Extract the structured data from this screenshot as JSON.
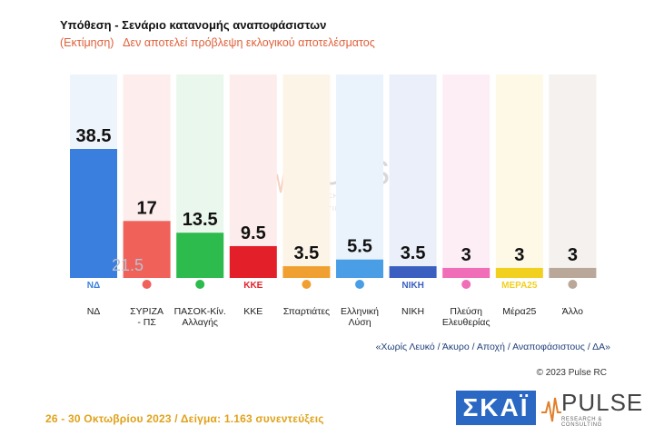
{
  "title": "Υπόθεση - Σενάριο κατανομής αναποφάσιστων",
  "subtitle": "(Εκτίμηση)   Δεν αποτελεί πρόβλεψη εκλογικού αποτελέσματος",
  "footer": "26 - 30 Οκτωβρίου  2023  /  Δείγμα:  1.163 συνεντεύξεις",
  "footnote": "«Χωρίς Λευκό / Άκυρο / Αποχή / Αναποφάσιστους / ΔΑ»",
  "copyright": "© 2023 Pulse RC",
  "brand_skai": "ΣΚΑΪ",
  "brand_pulse": "PULSE",
  "brand_pulse_tag": "RESEARCH & CONSULTING",
  "chart_data": {
    "type": "bar",
    "categories": [
      "ΝΔ",
      "ΣΥΡΙΖΑ\n- ΠΣ",
      "ΠΑΣΟΚ-Κίν.\nΑλλαγής",
      "ΚΚΕ",
      "Σπαρτιάτες",
      "Ελληνική\nΛύση",
      "ΝΙΚΗ",
      "Πλεύση\nΕλευθερίας",
      "Μέρα25",
      "Άλλο"
    ],
    "values": [
      38.5,
      17,
      13.5,
      9.5,
      3.5,
      5.5,
      3.5,
      3,
      3,
      3
    ],
    "value_labels": [
      "38.5",
      "17",
      "13.5",
      "9.5",
      "3.5",
      "5.5",
      "3.5",
      "3",
      "3",
      "3"
    ],
    "colors": [
      "#3b7fde",
      "#f0615a",
      "#2dbb4e",
      "#e3202a",
      "#f0a030",
      "#4a9ee6",
      "#3a5fc0",
      "#f06db8",
      "#f2d020",
      "#b9a89a"
    ],
    "backgrounds": [
      "#eef4fb",
      "#fdeeed",
      "#eaf7ec",
      "#fdecec",
      "#fdf4e8",
      "#eaf3fc",
      "#ebeff9",
      "#fdeef6",
      "#fdf9e6",
      "#f4f1ee"
    ],
    "difference_annotation": {
      "category": "ΝΔ",
      "label": "21.5"
    },
    "ylim": [
      0,
      40
    ],
    "logo_texts": [
      "ΝΔ",
      "",
      "",
      "ΚΚΕ",
      "",
      "",
      "ΝΙΚΗ",
      "",
      "ΜΕΡΑ25",
      ""
    ]
  }
}
